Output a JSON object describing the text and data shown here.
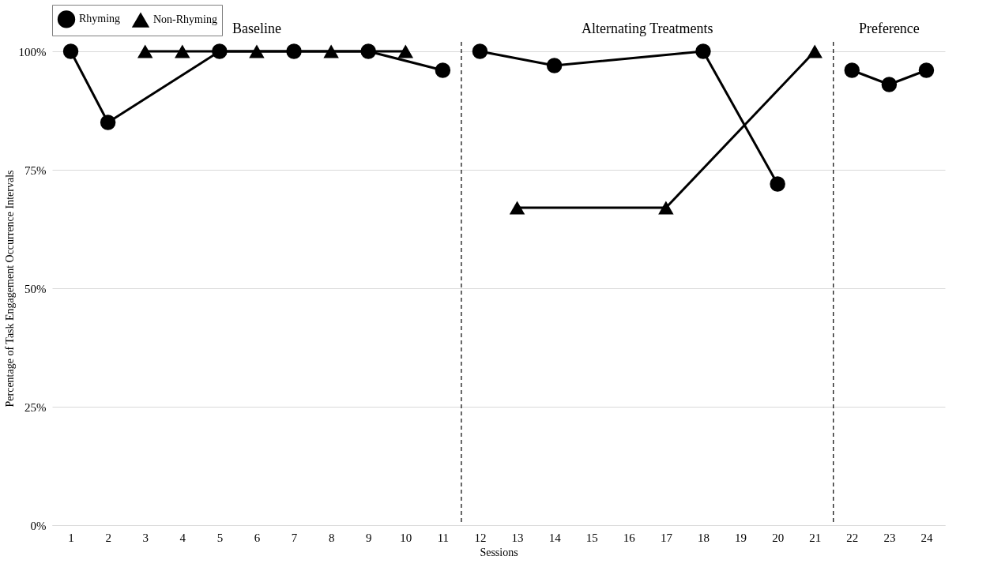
{
  "chart_data": {
    "type": "line",
    "xlabel": "Sessions",
    "ylabel": "Percentage of Task Engagement Occurrence Intervals",
    "xlim": [
      0.5,
      24.5
    ],
    "xticks": [
      1,
      2,
      3,
      4,
      5,
      6,
      7,
      8,
      9,
      10,
      11,
      12,
      13,
      14,
      15,
      16,
      17,
      18,
      19,
      20,
      21,
      22,
      23,
      24
    ],
    "ylim": [
      0,
      100
    ],
    "yticks": [
      {
        "value": 0,
        "label": "0%"
      },
      {
        "value": 25,
        "label": "25%"
      },
      {
        "value": 50,
        "label": "50%"
      },
      {
        "value": 75,
        "label": "75%"
      },
      {
        "value": 100,
        "label": "100%"
      }
    ],
    "grid": "y",
    "legend": "top",
    "line_style": "solid",
    "series": [
      {
        "name": "Rhyming",
        "color": "#000000",
        "marker": "circle",
        "x": [
          1,
          2,
          5,
          7,
          9,
          11
        ],
        "values": [
          100,
          85,
          100,
          100,
          100,
          96
        ]
      },
      {
        "name": "Non-Rhyming",
        "color": "#000000",
        "marker": "triangle",
        "x": [
          3,
          4,
          6,
          8,
          10
        ],
        "values": [
          100,
          100,
          100,
          100,
          100
        ]
      },
      {
        "color": "#000000",
        "marker": "circle",
        "x": [
          12,
          14,
          18,
          20
        ],
        "values": [
          100,
          97,
          100,
          72
        ]
      },
      {
        "color": "#000000",
        "marker": "triangle",
        "x": [
          13,
          17,
          21
        ],
        "values": [
          67,
          67,
          100
        ]
      },
      {
        "color": "#000000",
        "marker": "circle",
        "x": [
          22,
          23,
          24
        ],
        "values": [
          96,
          93,
          96
        ]
      }
    ],
    "ref_lines": [
      {
        "axis": "x",
        "value": 11.5,
        "line_style": "dashed",
        "color": "#000000"
      },
      {
        "axis": "x",
        "value": 21.5,
        "line_style": "dashed",
        "color": "#000000"
      }
    ],
    "annotations": [
      "Baseline",
      "Alternating Treatments",
      "Preference"
    ]
  }
}
